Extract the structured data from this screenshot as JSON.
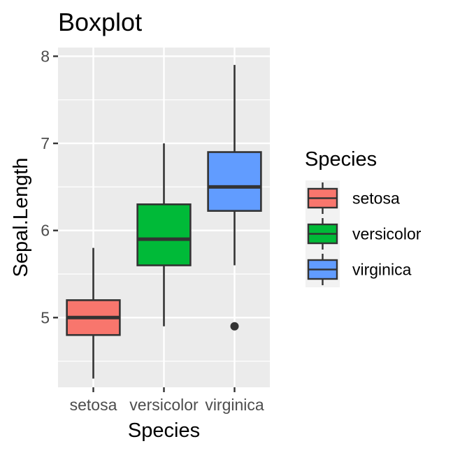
{
  "chart_data": {
    "type": "boxplot",
    "title": "Boxplot",
    "xlabel": "Species",
    "ylabel": "Sepal.Length",
    "ylim": [
      4.2,
      8.1
    ],
    "yticks": [
      5,
      6,
      7,
      8
    ],
    "grid": true,
    "legend": {
      "title": "Species",
      "position": "right"
    },
    "categories": [
      "setosa",
      "versicolor",
      "virginica"
    ],
    "colors": [
      "#F8766D",
      "#00BA38",
      "#619CFF"
    ],
    "series": [
      {
        "category": "setosa",
        "whisker_low": 4.3,
        "q1": 4.8,
        "median": 5.0,
        "q3": 5.2,
        "whisker_high": 5.8,
        "outliers": []
      },
      {
        "category": "versicolor",
        "whisker_low": 4.9,
        "q1": 5.6,
        "median": 5.9,
        "q3": 6.3,
        "whisker_high": 7.0,
        "outliers": []
      },
      {
        "category": "virginica",
        "whisker_low": 5.6,
        "q1": 6.225,
        "median": 6.5,
        "q3": 6.9,
        "whisker_high": 7.9,
        "outliers": [
          4.9
        ]
      }
    ]
  }
}
